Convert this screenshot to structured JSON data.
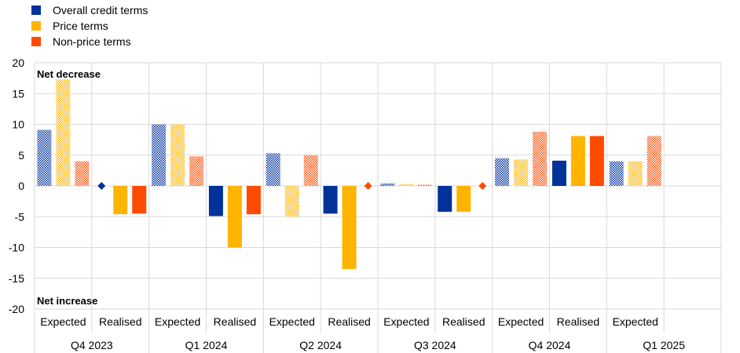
{
  "legend": {
    "items": [
      {
        "label": "Overall credit terms",
        "color": "#003299"
      },
      {
        "label": "Price terms",
        "color": "#FFB400"
      },
      {
        "label": "Non-price terms",
        "color": "#FF4B00"
      }
    ]
  },
  "chart_data": {
    "type": "bar",
    "title": "",
    "xlabel": "",
    "ylabel": "",
    "ylim": [
      -20,
      20
    ],
    "yticks": [
      20,
      15,
      10,
      5,
      0,
      -5,
      -10,
      -15,
      -20
    ],
    "grid": true,
    "legend_position": "top-left",
    "annotations": {
      "top": "Net decrease",
      "bottom": "Net increase"
    },
    "groups": [
      {
        "quarter": "Q4 2023",
        "categories": [
          "Expected",
          "Realised"
        ]
      },
      {
        "quarter": "Q1 2024",
        "categories": [
          "Expected",
          "Realised"
        ]
      },
      {
        "quarter": "Q2 2024",
        "categories": [
          "Expected",
          "Realised"
        ]
      },
      {
        "quarter": "Q3 2024",
        "categories": [
          "Expected",
          "Realised"
        ]
      },
      {
        "quarter": "Q4 2024",
        "categories": [
          "Expected",
          "Realised"
        ]
      },
      {
        "quarter": "Q1 2025",
        "categories": [
          "Expected"
        ]
      }
    ],
    "categories": [
      "Expected",
      "Realised",
      "Expected",
      "Realised",
      "Expected",
      "Realised",
      "Expected",
      "Realised",
      "Expected",
      "Realised",
      "Expected"
    ],
    "pattern": [
      "hatched",
      "solid",
      "hatched",
      "solid",
      "hatched",
      "solid",
      "hatched",
      "solid",
      "hatched",
      "solid",
      "hatched"
    ],
    "series": [
      {
        "name": "Overall credit terms",
        "color": "#003299",
        "values": [
          9.1,
          0,
          10.0,
          -4.9,
          5.3,
          -4.5,
          0.4,
          -4.2,
          4.5,
          4.1,
          4.0
        ]
      },
      {
        "name": "Price terms",
        "color": "#FFB400",
        "values": [
          17.3,
          -4.6,
          10.0,
          -10.0,
          -5.0,
          -13.5,
          0.3,
          -4.2,
          4.3,
          8.1,
          4.0
        ]
      },
      {
        "name": "Non-price terms",
        "color": "#FF4B00",
        "values": [
          4.0,
          -4.5,
          4.8,
          -4.6,
          5.0,
          0,
          0.2,
          0,
          8.8,
          8.1,
          8.1
        ]
      }
    ]
  }
}
